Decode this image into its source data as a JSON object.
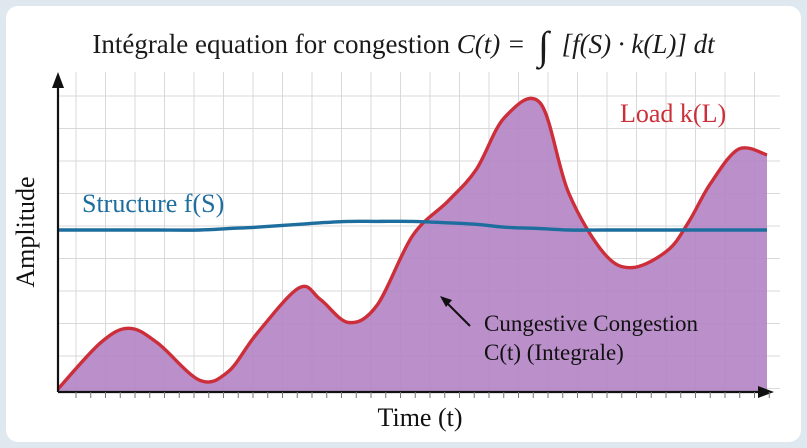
{
  "chart_data": {
    "type": "area",
    "title": {
      "text": "Intégrale equation for congestion",
      "formula_lhs": "C(t) =",
      "formula_integral": "∫",
      "formula_rhs": "[f(S) · k(L)] dt"
    },
    "xlabel": "Time (t)",
    "ylabel": "Amplitude",
    "grid": true,
    "x": [
      0,
      0.06,
      0.1,
      0.14,
      0.2,
      0.24,
      0.28,
      0.34,
      0.37,
      0.41,
      0.45,
      0.5,
      0.55,
      0.59,
      0.63,
      0.68,
      0.72,
      0.77,
      0.81,
      0.86,
      0.89,
      0.92,
      0.96,
      1.0
    ],
    "xlim": [
      0,
      1
    ],
    "ylim": [
      0,
      1
    ],
    "series": [
      {
        "name": "Load k(L)",
        "color": "#cc2f3a",
        "fill": "#b486c6",
        "values": [
          0.0,
          0.16,
          0.21,
          0.16,
          0.03,
          0.06,
          0.19,
          0.35,
          0.31,
          0.23,
          0.29,
          0.53,
          0.65,
          0.76,
          0.94,
          0.99,
          0.68,
          0.47,
          0.42,
          0.48,
          0.58,
          0.71,
          0.83,
          0.81
        ]
      },
      {
        "name": "Structure f(S)",
        "color": "#1d6e9e",
        "values": [
          0.55,
          0.55,
          0.55,
          0.55,
          0.55,
          0.555,
          0.56,
          0.57,
          0.575,
          0.58,
          0.58,
          0.58,
          0.575,
          0.57,
          0.56,
          0.555,
          0.55,
          0.55,
          0.55,
          0.55,
          0.55,
          0.55,
          0.55,
          0.55
        ]
      }
    ],
    "annotations": {
      "load_label": "Load k(L)",
      "structure_label": "Structure f(S)",
      "area_line1": "Cungestive Congestion",
      "area_line2": "C(t) (Integrale)"
    }
  }
}
